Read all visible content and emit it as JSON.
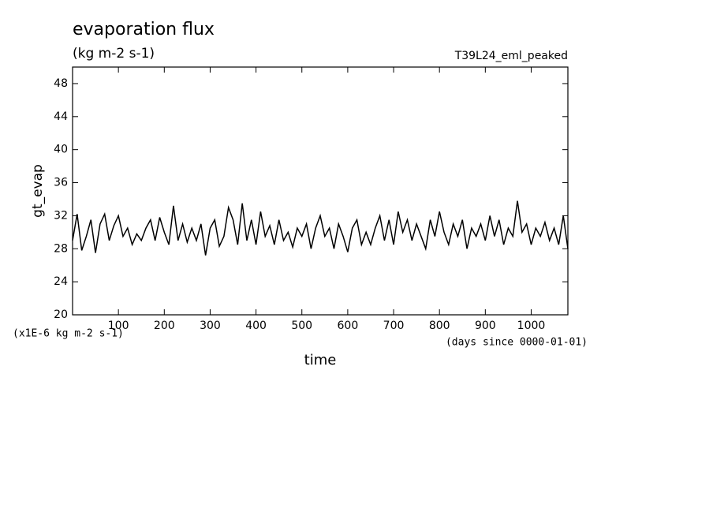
{
  "chart_data": {
    "type": "line",
    "title": "evaporation flux",
    "subtitle": "(kg m-2 s-1)",
    "annotation": "T39L24_eml_peaked",
    "y_label": "gt_evap",
    "x_label": "time",
    "y_unit_note": "(x1E-6 kg m-2 s-1)",
    "x_unit_note": "(days since 0000-01-01)",
    "color": "#000000",
    "x": [
      0,
      10,
      20,
      30,
      40,
      50,
      60,
      70,
      80,
      90,
      100,
      110,
      120,
      130,
      140,
      150,
      160,
      170,
      180,
      190,
      200,
      210,
      220,
      230,
      240,
      250,
      260,
      270,
      280,
      290,
      300,
      310,
      320,
      330,
      340,
      350,
      360,
      370,
      380,
      390,
      400,
      410,
      420,
      430,
      440,
      450,
      460,
      470,
      480,
      490,
      500,
      510,
      520,
      530,
      540,
      550,
      560,
      570,
      580,
      590,
      600,
      610,
      620,
      630,
      640,
      650,
      660,
      670,
      680,
      690,
      700,
      710,
      720,
      730,
      740,
      750,
      760,
      770,
      780,
      790,
      800,
      810,
      820,
      830,
      840,
      850,
      860,
      870,
      880,
      890,
      900,
      910,
      920,
      930,
      940,
      950,
      960,
      970,
      980,
      990,
      1000,
      1010,
      1020,
      1030,
      1040,
      1050,
      1060,
      1070,
      1080
    ],
    "values": [
      29.0,
      32.2,
      27.8,
      29.5,
      31.5,
      27.5,
      31.0,
      32.2,
      29.0,
      30.8,
      32.0,
      29.5,
      30.5,
      28.5,
      29.8,
      29.0,
      30.5,
      31.5,
      29.0,
      31.8,
      30.0,
      28.5,
      33.2,
      29.0,
      31.0,
      28.8,
      30.5,
      29.0,
      31.0,
      27.2,
      30.5,
      31.5,
      28.3,
      29.5,
      33.0,
      31.5,
      28.5,
      33.5,
      29.0,
      31.5,
      28.5,
      32.5,
      29.5,
      30.8,
      28.5,
      31.5,
      29.0,
      30.0,
      28.2,
      30.5,
      29.5,
      31.0,
      28.0,
      30.5,
      32.0,
      29.5,
      30.5,
      28.0,
      31.0,
      29.5,
      27.6,
      30.5,
      31.5,
      28.5,
      30.0,
      28.5,
      30.5,
      32.0,
      29.0,
      31.5,
      28.5,
      32.5,
      30.0,
      31.5,
      29.0,
      31.0,
      29.5,
      28.0,
      31.5,
      29.5,
      32.5,
      30.0,
      28.5,
      31.0,
      29.5,
      31.5,
      28.0,
      30.5,
      29.5,
      31.0,
      29.0,
      32.0,
      29.5,
      31.5,
      28.5,
      30.5,
      29.5,
      33.8,
      30.0,
      31.0,
      28.5,
      30.5,
      29.5,
      31.2,
      29.0,
      30.5,
      28.5,
      32.0,
      28.0
    ],
    "xlim": [
      0,
      1080
    ],
    "ylim": [
      20,
      50
    ],
    "xticks": [
      100,
      200,
      300,
      400,
      500,
      600,
      700,
      800,
      900,
      1000
    ],
    "yticks": [
      20,
      24,
      28,
      32,
      36,
      40,
      44,
      48
    ]
  }
}
